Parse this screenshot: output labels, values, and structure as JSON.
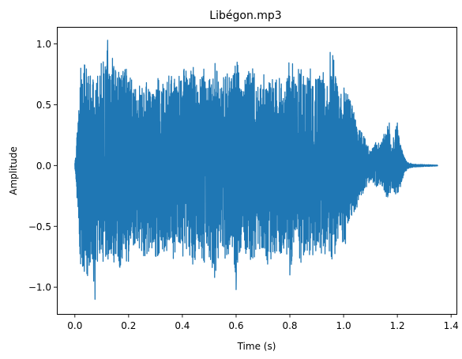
{
  "chart_data": {
    "type": "line",
    "title": "Libégon.mp3",
    "xlabel": "Time (s)",
    "ylabel": "Amplitude",
    "xlim": [
      -0.067,
      1.42
    ],
    "ylim": [
      -1.22,
      1.14
    ],
    "xticks": [
      0.0,
      0.2,
      0.4,
      0.6,
      0.8,
      1.0,
      1.2,
      1.4
    ],
    "xtick_labels": [
      "0.0",
      "0.2",
      "0.4",
      "0.6",
      "0.8",
      "1.0",
      "1.2",
      "1.4"
    ],
    "yticks": [
      1.0,
      0.5,
      0.0,
      -0.5,
      -1.0
    ],
    "ytick_labels": [
      "1.0",
      "0.5",
      "0.0",
      "−0.5",
      "−1.0"
    ],
    "grid": false,
    "legend": "none",
    "color": "#1f77b4",
    "duration": 1.35,
    "series": [
      {
        "envelope": {
          "t": [
            0.0,
            0.005,
            0.01,
            0.015,
            0.02,
            0.025,
            0.03,
            0.04,
            0.05,
            0.06,
            0.07,
            0.08,
            0.09,
            0.1,
            0.11,
            0.12,
            0.13,
            0.14,
            0.15,
            0.16,
            0.17,
            0.18,
            0.19,
            0.2,
            0.22,
            0.24,
            0.26,
            0.28,
            0.3,
            0.32,
            0.34,
            0.36,
            0.38,
            0.4,
            0.42,
            0.44,
            0.46,
            0.48,
            0.5,
            0.52,
            0.54,
            0.56,
            0.58,
            0.6,
            0.62,
            0.64,
            0.66,
            0.68,
            0.7,
            0.72,
            0.74,
            0.76,
            0.78,
            0.8,
            0.82,
            0.84,
            0.86,
            0.88,
            0.9,
            0.92,
            0.94,
            0.96,
            0.98,
            1.0,
            1.02,
            1.04,
            1.05,
            1.06,
            1.08,
            1.1,
            1.12,
            1.14,
            1.16,
            1.18,
            1.2,
            1.21,
            1.22,
            1.23,
            1.24,
            1.26,
            1.3,
            1.35
          ],
          "upper": [
            0.02,
            0.15,
            0.35,
            0.55,
            0.8,
            0.7,
            0.85,
            0.82,
            0.88,
            0.76,
            0.83,
            0.9,
            0.7,
            0.95,
            0.85,
            1.03,
            0.78,
            0.9,
            0.8,
            0.75,
            0.82,
            0.78,
            0.8,
            0.78,
            0.68,
            0.65,
            0.8,
            0.6,
            0.75,
            0.68,
            0.7,
            0.8,
            0.65,
            0.9,
            0.72,
            0.82,
            0.68,
            0.8,
            0.7,
            0.88,
            0.66,
            0.78,
            0.72,
            0.95,
            0.62,
            0.75,
            0.85,
            0.65,
            0.78,
            0.68,
            0.8,
            0.75,
            0.6,
            0.9,
            0.78,
            0.85,
            0.7,
            0.82,
            0.75,
            0.8,
            0.68,
            0.92,
            0.62,
            0.7,
            0.58,
            0.45,
            0.35,
            0.3,
            0.22,
            0.12,
            0.2,
            0.18,
            0.35,
            0.2,
            0.35,
            0.2,
            0.12,
            0.05,
            0.025,
            0.012,
            0.008,
            0.004
          ],
          "lower": [
            -0.02,
            -0.15,
            -0.35,
            -0.55,
            -0.85,
            -0.75,
            -0.9,
            -0.88,
            -0.95,
            -0.85,
            -0.78,
            -0.82,
            -0.75,
            -0.88,
            -0.7,
            -0.85,
            -0.72,
            -0.8,
            -0.82,
            -0.75,
            -0.88,
            -0.72,
            -0.82,
            -0.8,
            -0.68,
            -0.7,
            -0.85,
            -0.65,
            -0.78,
            -0.72,
            -0.7,
            -0.82,
            -0.68,
            -0.75,
            -0.7,
            -0.85,
            -0.7,
            -0.82,
            -0.75,
            -0.92,
            -0.7,
            -0.78,
            -0.72,
            -0.95,
            -0.65,
            -0.78,
            -0.8,
            -0.7,
            -0.76,
            -0.82,
            -0.72,
            -0.78,
            -0.68,
            -0.88,
            -0.75,
            -0.82,
            -0.7,
            -0.78,
            -0.72,
            -0.8,
            -0.68,
            -0.82,
            -0.6,
            -0.72,
            -0.55,
            -0.42,
            -0.35,
            -0.28,
            -0.2,
            -0.12,
            -0.18,
            -0.15,
            -0.28,
            -0.2,
            -0.25,
            -0.2,
            -0.12,
            -0.05,
            -0.025,
            -0.012,
            -0.008,
            -0.004
          ]
        },
        "peaks": [
          {
            "t": 0.012,
            "value": 0.35
          },
          {
            "t": 0.022,
            "value": 0.8
          },
          {
            "t": 0.122,
            "value": 1.03
          },
          {
            "t": 0.6,
            "value": 0.96
          },
          {
            "t": 0.95,
            "value": 0.93
          },
          {
            "t": 1.17,
            "value": 0.35
          },
          {
            "t": 1.2,
            "value": 0.35
          },
          {
            "t": 0.035,
            "value": -0.87
          },
          {
            "t": 0.07,
            "value": -0.95
          },
          {
            "t": 0.075,
            "value": -1.1
          },
          {
            "t": 0.52,
            "value": -0.92
          },
          {
            "t": 0.6,
            "value": -1.02
          },
          {
            "t": 0.8,
            "value": -0.9
          }
        ]
      }
    ]
  }
}
